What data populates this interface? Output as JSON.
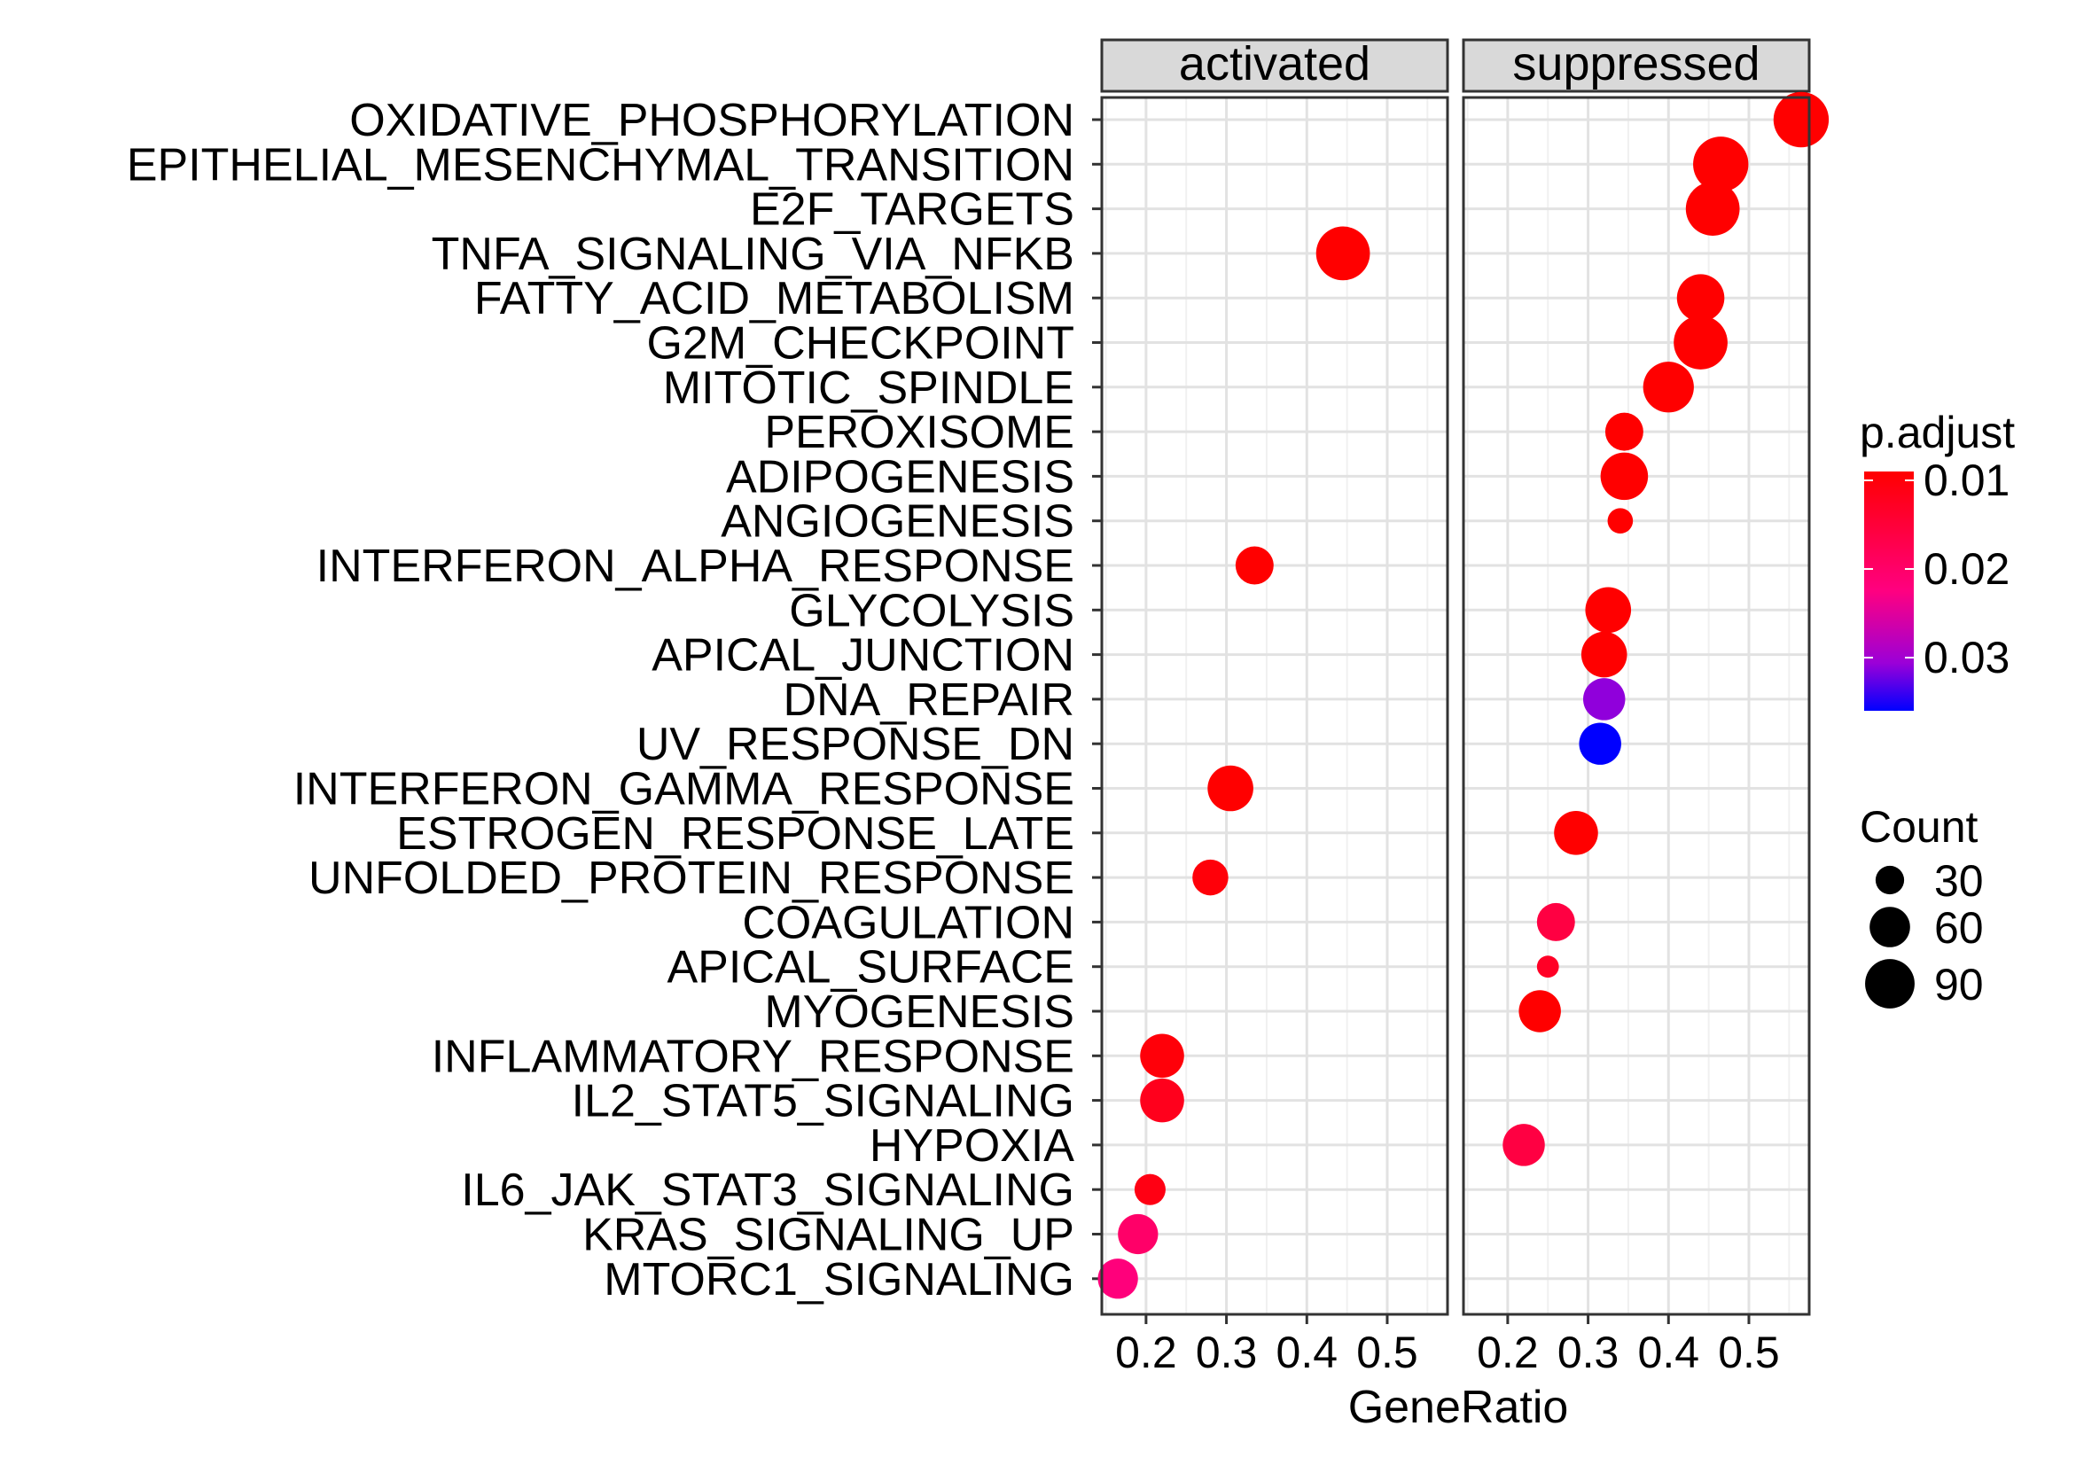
{
  "chart_data": {
    "type": "scatter",
    "facets": [
      "activated",
      "suppressed"
    ],
    "xlabel": "GeneRatio",
    "xlim": [
      0.145,
      0.575
    ],
    "x_ticks": [
      0.2,
      0.3,
      0.4,
      0.5
    ],
    "x_tick_labels": [
      "0.2",
      "0.3",
      "0.4",
      "0.5"
    ],
    "grid": true,
    "categories": [
      "OXIDATIVE_PHOSPHORYLATION",
      "EPITHELIAL_MESENCHYMAL_TRANSITION",
      "E2F_TARGETS",
      "TNFA_SIGNALING_VIA_NFKB",
      "FATTY_ACID_METABOLISM",
      "G2M_CHECKPOINT",
      "MITOTIC_SPINDLE",
      "PEROXISOME",
      "ADIPOGENESIS",
      "ANGIOGENESIS",
      "INTERFERON_ALPHA_RESPONSE",
      "GLYCOLYSIS",
      "APICAL_JUNCTION",
      "DNA_REPAIR",
      "UV_RESPONSE_DN",
      "INTERFERON_GAMMA_RESPONSE",
      "ESTROGEN_RESPONSE_LATE",
      "UNFOLDED_PROTEIN_RESPONSE",
      "COAGULATION",
      "APICAL_SURFACE",
      "MYOGENESIS",
      "INFLAMMATORY_RESPONSE",
      "IL2_STAT5_SIGNALING",
      "HYPOXIA",
      "IL6_JAK_STAT3_SIGNALING",
      "KRAS_SIGNALING_UP",
      "MTORC1_SIGNALING"
    ],
    "points": [
      {
        "facet": "suppressed",
        "category": "OXIDATIVE_PHOSPHORYLATION",
        "x": 0.565,
        "count": 95,
        "p_adjust": 0.009
      },
      {
        "facet": "suppressed",
        "category": "EPITHELIAL_MESENCHYMAL_TRANSITION",
        "x": 0.465,
        "count": 95,
        "p_adjust": 0.009
      },
      {
        "facet": "suppressed",
        "category": "E2F_TARGETS",
        "x": 0.455,
        "count": 90,
        "p_adjust": 0.009
      },
      {
        "facet": "activated",
        "category": "TNFA_SIGNALING_VIA_NFKB",
        "x": 0.445,
        "count": 90,
        "p_adjust": 0.009
      },
      {
        "facet": "suppressed",
        "category": "FATTY_ACID_METABOLISM",
        "x": 0.44,
        "count": 70,
        "p_adjust": 0.009
      },
      {
        "facet": "suppressed",
        "category": "G2M_CHECKPOINT",
        "x": 0.44,
        "count": 90,
        "p_adjust": 0.009
      },
      {
        "facet": "suppressed",
        "category": "MITOTIC_SPINDLE",
        "x": 0.4,
        "count": 80,
        "p_adjust": 0.009
      },
      {
        "facet": "suppressed",
        "category": "PEROXISOME",
        "x": 0.345,
        "count": 45,
        "p_adjust": 0.009
      },
      {
        "facet": "suppressed",
        "category": "ADIPOGENESIS",
        "x": 0.345,
        "count": 70,
        "p_adjust": 0.009
      },
      {
        "facet": "suppressed",
        "category": "ANGIOGENESIS",
        "x": 0.34,
        "count": 20,
        "p_adjust": 0.009
      },
      {
        "facet": "activated",
        "category": "INTERFERON_ALPHA_RESPONSE",
        "x": 0.335,
        "count": 45,
        "p_adjust": 0.009
      },
      {
        "facet": "suppressed",
        "category": "GLYCOLYSIS",
        "x": 0.325,
        "count": 65,
        "p_adjust": 0.009
      },
      {
        "facet": "suppressed",
        "category": "APICAL_JUNCTION",
        "x": 0.32,
        "count": 65,
        "p_adjust": 0.009
      },
      {
        "facet": "suppressed",
        "category": "DNA_REPAIR",
        "x": 0.32,
        "count": 55,
        "p_adjust": 0.031
      },
      {
        "facet": "suppressed",
        "category": "UV_RESPONSE_DN",
        "x": 0.315,
        "count": 55,
        "p_adjust": 0.036
      },
      {
        "facet": "activated",
        "category": "INTERFERON_GAMMA_RESPONSE",
        "x": 0.305,
        "count": 65,
        "p_adjust": 0.009
      },
      {
        "facet": "suppressed",
        "category": "ESTROGEN_RESPONSE_LATE",
        "x": 0.285,
        "count": 60,
        "p_adjust": 0.009
      },
      {
        "facet": "activated",
        "category": "UNFOLDED_PROTEIN_RESPONSE",
        "x": 0.28,
        "count": 40,
        "p_adjust": 0.01
      },
      {
        "facet": "suppressed",
        "category": "COAGULATION",
        "x": 0.26,
        "count": 45,
        "p_adjust": 0.016
      },
      {
        "facet": "suppressed",
        "category": "APICAL_SURFACE",
        "x": 0.25,
        "count": 15,
        "p_adjust": 0.013
      },
      {
        "facet": "suppressed",
        "category": "MYOGENESIS",
        "x": 0.24,
        "count": 55,
        "p_adjust": 0.009
      },
      {
        "facet": "activated",
        "category": "INFLAMMATORY_RESPONSE",
        "x": 0.22,
        "count": 60,
        "p_adjust": 0.01
      },
      {
        "facet": "activated",
        "category": "IL2_STAT5_SIGNALING",
        "x": 0.22,
        "count": 60,
        "p_adjust": 0.012
      },
      {
        "facet": "suppressed",
        "category": "HYPOXIA",
        "x": 0.22,
        "count": 55,
        "p_adjust": 0.016
      },
      {
        "facet": "activated",
        "category": "IL6_JAK_STAT3_SIGNALING",
        "x": 0.205,
        "count": 30,
        "p_adjust": 0.011
      },
      {
        "facet": "activated",
        "category": "KRAS_SIGNALING_UP",
        "x": 0.19,
        "count": 50,
        "p_adjust": 0.02
      },
      {
        "facet": "activated",
        "category": "MTORC1_SIGNALING",
        "x": 0.165,
        "count": 50,
        "p_adjust": 0.022
      }
    ],
    "color_legend": {
      "title": "p.adjust",
      "range": [
        0.009,
        0.036
      ],
      "breaks": [
        0.01,
        0.02,
        0.03
      ],
      "break_labels": [
        "0.01",
        "0.02",
        "0.03"
      ],
      "low_color": "#ff0000",
      "high_color": "#0000ff"
    },
    "size_legend": {
      "title": "Count",
      "breaks": [
        30,
        60,
        90
      ],
      "break_labels": [
        "30",
        "60",
        "90"
      ]
    },
    "legend_position": "right"
  }
}
